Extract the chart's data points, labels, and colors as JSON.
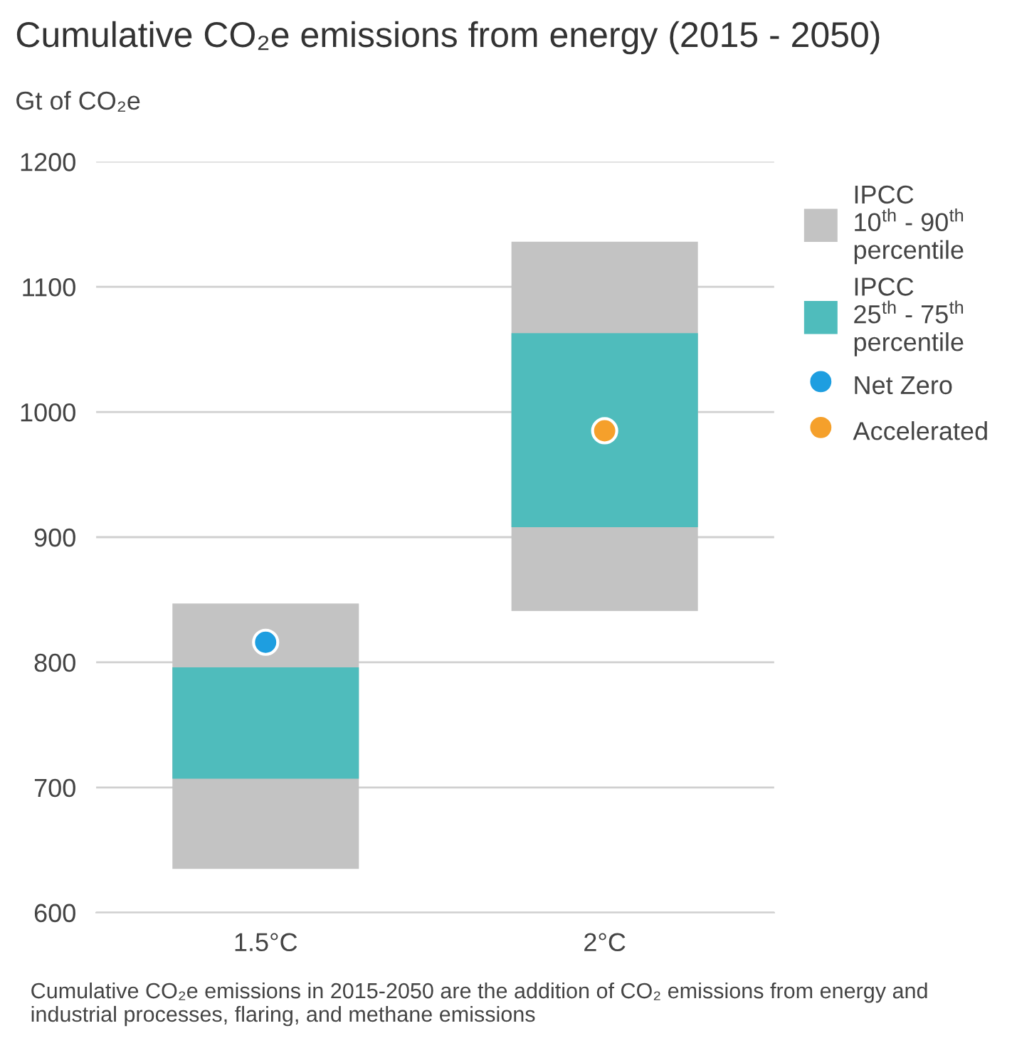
{
  "chart_data": {
    "type": "bar",
    "title": "Cumulative CO₂e emissions from energy (2015 - 2050)",
    "ylabel": "Gt of CO₂e",
    "categories": [
      "1.5°C",
      "2°C"
    ],
    "series": [
      {
        "name": "IPCC\n10$^{th}$ - 90$^{th}$\npercentile",
        "color": "#c3c3c3",
        "base": [
          635,
          841
        ],
        "values": [
          212,
          295
        ]
      },
      {
        "name": "IPCC\n25$^{th}$ - 75$^{th}$\npercentile",
        "color": "#4fbcbc",
        "base": [
          707,
          908
        ],
        "values": [
          89,
          155
        ]
      },
      {
        "type": "scatter",
        "name": "Net Zero",
        "color": "#1e9ee0",
        "x": [
          "1.5°C",
          "2°C"
        ],
        "values": [
          816,
          null
        ]
      },
      {
        "type": "scatter",
        "name": "Accelerated",
        "color": "#f5a02b",
        "x": [
          "1.5°C",
          "2°C"
        ],
        "values": [
          null,
          985
        ]
      }
    ],
    "ylim": [
      600,
      1200
    ],
    "yticks": [
      600,
      700,
      800,
      900,
      1000,
      1100,
      1200
    ],
    "grid": "y",
    "legend": "right",
    "marker": "circle",
    "annotations": [
      "Cumulative CO₂e emissions in 2015-2050 are the addition of CO₂ emissions from energy and industrial processes, flaring, and methane emissions"
    ]
  }
}
